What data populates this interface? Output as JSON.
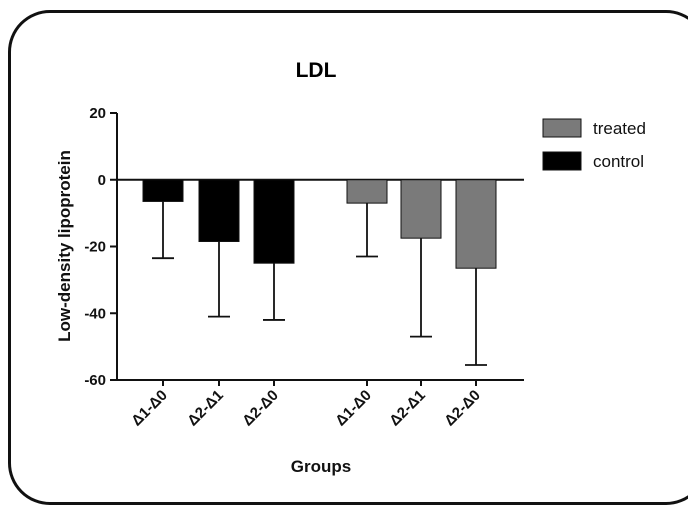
{
  "chart_data": {
    "type": "bar",
    "title": "LDL",
    "xlabel": "Groups",
    "ylabel": "Low-density lipoprotein",
    "ylim": [
      -60,
      20
    ],
    "yticks": [
      20,
      0,
      -20,
      -40,
      -60
    ],
    "categories": [
      "Δ1-Δ0",
      "Δ2-Δ1",
      "Δ2-Δ0",
      "Δ1-Δ0",
      "Δ2-Δ1",
      "Δ2-Δ0"
    ],
    "series": [
      {
        "name": "control",
        "color": "#000000",
        "values": [
          -6.5,
          -18.5,
          -25,
          null,
          null,
          null
        ],
        "errors": [
          17,
          22.5,
          17,
          null,
          null,
          null
        ]
      },
      {
        "name": "treated",
        "color": "#7a7a7a",
        "values": [
          null,
          null,
          null,
          -7,
          -17.5,
          -26.5
        ],
        "errors": [
          null,
          null,
          null,
          16,
          29.5,
          29
        ]
      }
    ],
    "legend": {
      "position": "top-right",
      "order": [
        "treated",
        "control"
      ]
    }
  }
}
